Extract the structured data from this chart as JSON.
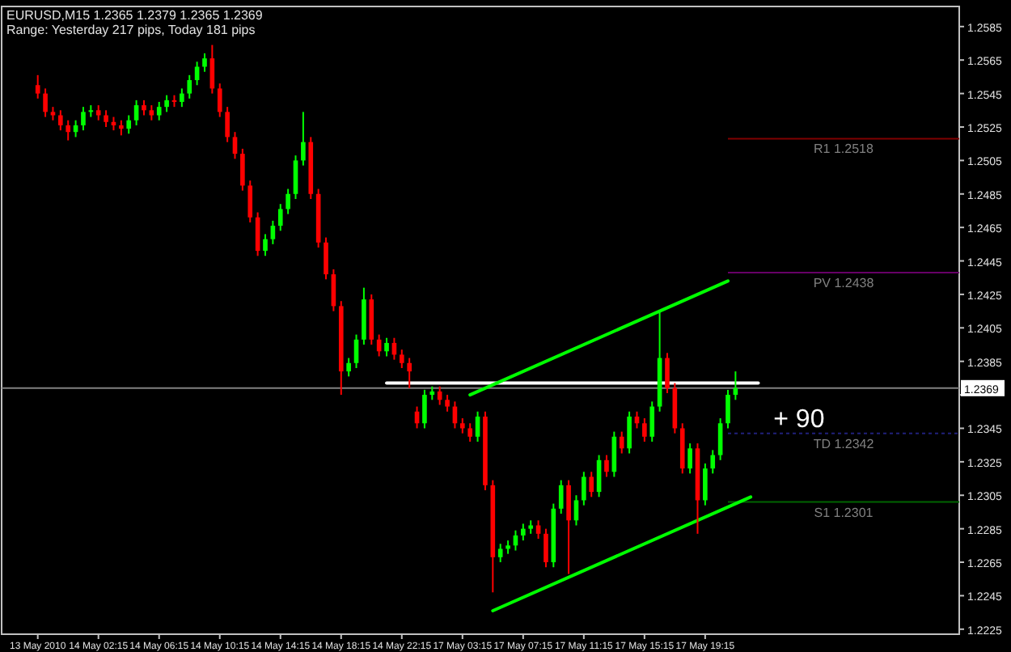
{
  "chart_data": {
    "type": "candlestick",
    "title": "EURUSD,M15  1.2365 1.2379 1.2365 1.2369",
    "subtitle": "Range: Yesterday 217 pips, Today 181 pips",
    "categories": [
      "13 May 2010",
      null,
      null,
      null,
      null,
      null,
      null,
      null,
      "14 May 02:15",
      null,
      null,
      null,
      null,
      null,
      null,
      null,
      "14 May 06:15",
      null,
      null,
      null,
      null,
      null,
      null,
      null,
      "14 May 10:15",
      null,
      null,
      null,
      null,
      null,
      null,
      null,
      "14 May 14:15",
      null,
      null,
      null,
      null,
      null,
      null,
      null,
      "14 May 18:15",
      null,
      null,
      null,
      null,
      null,
      null,
      null,
      "14 May 22:15",
      null,
      null,
      null,
      null,
      null,
      null,
      null,
      "17 May 03:15",
      null,
      null,
      null,
      null,
      null,
      null,
      null,
      "17 May 07:15",
      null,
      null,
      null,
      null,
      null,
      null,
      null,
      "17 May 11:15",
      null,
      null,
      null,
      null,
      null,
      null,
      null,
      "17 May 15:15",
      null,
      null,
      null,
      null,
      null,
      null,
      null,
      "17 May 19:15",
      null,
      null,
      null,
      null,
      null,
      null,
      null,
      null,
      null,
      null,
      null,
      null,
      null,
      null,
      null,
      null,
      null,
      null,
      null,
      null,
      null,
      null,
      null,
      null,
      null,
      null,
      null,
      null,
      null,
      null,
      null,
      null,
      null
    ],
    "ylim": [
      1.2222,
      1.2597
    ],
    "yticks": [
      1.2225,
      1.2245,
      1.2265,
      1.2285,
      1.2305,
      1.2325,
      1.2345,
      {
        "value": 1.2365,
        "label": null
      },
      1.2385,
      1.2405,
      1.2425,
      1.2445,
      1.2465,
      1.2485,
      1.2505,
      1.2525,
      1.2545,
      1.2565,
      1.2585
    ],
    "ohlc": [
      [
        1.255,
        1.2556,
        1.2542,
        1.2545
      ],
      [
        1.2545,
        1.2548,
        1.2531,
        1.2534
      ],
      [
        1.2534,
        1.2537,
        1.2529,
        1.2532
      ],
      [
        1.2532,
        1.2535,
        1.2523,
        1.2526
      ],
      [
        1.2526,
        1.2529,
        1.2517,
        1.2522
      ],
      [
        1.2522,
        1.2529,
        1.2519,
        1.2526
      ],
      [
        1.2526,
        1.2537,
        1.2523,
        1.2534
      ],
      [
        1.2534,
        1.2538,
        1.2531,
        1.2535
      ],
      [
        1.2535,
        1.2538,
        1.2529,
        1.2532
      ],
      [
        1.2532,
        1.2535,
        1.2525,
        1.2528
      ],
      [
        1.2528,
        1.2531,
        1.2523,
        1.2526
      ],
      [
        1.2526,
        1.2529,
        1.252,
        1.2524
      ],
      [
        1.2524,
        1.2532,
        1.2521,
        1.2529
      ],
      [
        1.2529,
        1.2541,
        1.2526,
        1.2538
      ],
      [
        1.2538,
        1.2541,
        1.2532,
        1.2535
      ],
      [
        1.2535,
        1.2538,
        1.2529,
        1.2532
      ],
      [
        1.2532,
        1.254,
        1.2529,
        1.2537
      ],
      [
        1.2537,
        1.2544,
        1.2534,
        1.2541
      ],
      [
        1.2541,
        1.2544,
        1.2537,
        1.254
      ],
      [
        1.254,
        1.2548,
        1.2537,
        1.2545
      ],
      [
        1.2545,
        1.2556,
        1.2542,
        1.2553
      ],
      [
        1.2553,
        1.2564,
        1.255,
        1.2561
      ],
      [
        1.2561,
        1.2569,
        1.2558,
        1.2566
      ],
      [
        1.2566,
        1.2574,
        1.2545,
        1.2548
      ],
      [
        1.2548,
        1.2551,
        1.2531,
        1.2534
      ],
      [
        1.2534,
        1.2537,
        1.2516,
        1.2519
      ],
      [
        1.2519,
        1.2522,
        1.2506,
        1.2509
      ],
      [
        1.2509,
        1.2512,
        1.2487,
        1.249
      ],
      [
        1.249,
        1.2493,
        1.2468,
        1.2471
      ],
      [
        1.2471,
        1.2474,
        1.2448,
        1.2451
      ],
      [
        1.2451,
        1.2461,
        1.2448,
        1.2458
      ],
      [
        1.2458,
        1.2469,
        1.2455,
        1.2466
      ],
      [
        1.2466,
        1.2479,
        1.2463,
        1.2476
      ],
      [
        1.2476,
        1.2488,
        1.2473,
        1.2485
      ],
      [
        1.2485,
        1.2508,
        1.2482,
        1.2505
      ],
      [
        1.2505,
        1.2534,
        1.2502,
        1.2516
      ],
      [
        1.2516,
        1.2519,
        1.2482,
        1.2485
      ],
      [
        1.2485,
        1.2488,
        1.2453,
        1.2456
      ],
      [
        1.2456,
        1.2459,
        1.2434,
        1.2437
      ],
      [
        1.2437,
        1.244,
        1.2415,
        1.2418
      ],
      [
        1.2418,
        1.2421,
        1.2365,
        1.2379
      ],
      [
        1.2379,
        1.2387,
        1.2376,
        1.2384
      ],
      [
        1.2384,
        1.2401,
        1.2381,
        1.2398
      ],
      [
        1.2398,
        1.2429,
        1.2395,
        1.2422
      ],
      [
        1.2422,
        1.2425,
        1.2395,
        1.2398
      ],
      [
        1.2398,
        1.2401,
        1.2388,
        1.2391
      ],
      [
        1.2391,
        1.2399,
        1.2388,
        1.2396
      ],
      [
        1.2396,
        1.2399,
        1.2386,
        1.2389
      ],
      [
        1.2389,
        1.2392,
        1.2381,
        1.2384
      ],
      [
        1.2384,
        1.2387,
        1.2369,
        1.2379
      ],
      [
        1.2355,
        1.2358,
        1.2345,
        1.2348
      ],
      [
        1.2348,
        1.2368,
        1.2345,
        1.2365
      ],
      [
        1.2365,
        1.237,
        1.2362,
        1.2367
      ],
      [
        1.2367,
        1.237,
        1.2359,
        1.2362
      ],
      [
        1.2362,
        1.2365,
        1.2355,
        1.2358
      ],
      [
        1.2358,
        1.2361,
        1.2345,
        1.2348
      ],
      [
        1.2348,
        1.2351,
        1.2342,
        1.2345
      ],
      [
        1.2345,
        1.2348,
        1.2337,
        1.234
      ],
      [
        1.234,
        1.2355,
        1.2337,
        1.2352
      ],
      [
        1.2352,
        1.2355,
        1.2308,
        1.2311
      ],
      [
        1.2311,
        1.2314,
        1.2247,
        1.2268
      ],
      [
        1.2268,
        1.2276,
        1.2265,
        1.2273
      ],
      [
        1.2273,
        1.2278,
        1.227,
        1.2275
      ],
      [
        1.2275,
        1.2284,
        1.2272,
        1.2281
      ],
      [
        1.2281,
        1.2288,
        1.2278,
        1.2285
      ],
      [
        1.2285,
        1.229,
        1.2282,
        1.2287
      ],
      [
        1.2287,
        1.229,
        1.2279,
        1.2282
      ],
      [
        1.2282,
        1.2285,
        1.2262,
        1.2265
      ],
      [
        1.2265,
        1.23,
        1.2262,
        1.2297
      ],
      [
        1.2297,
        1.2314,
        1.2294,
        1.2311
      ],
      [
        1.2311,
        1.2314,
        1.2258,
        1.229
      ],
      [
        1.229,
        1.2305,
        1.2287,
        1.2302
      ],
      [
        1.2302,
        1.2319,
        1.2299,
        1.2316
      ],
      [
        1.2316,
        1.2319,
        1.2304,
        1.2307
      ],
      [
        1.2307,
        1.2329,
        1.2304,
        1.2326
      ],
      [
        1.2326,
        1.2329,
        1.2316,
        1.2319
      ],
      [
        1.2319,
        1.2343,
        1.2316,
        1.234
      ],
      [
        1.234,
        1.2343,
        1.233,
        1.2333
      ],
      [
        1.2333,
        1.2355,
        1.233,
        1.2352
      ],
      [
        1.2352,
        1.2355,
        1.2345,
        1.2348
      ],
      [
        1.2348,
        1.2351,
        1.2337,
        1.234
      ],
      [
        1.234,
        1.2361,
        1.2337,
        1.2358
      ],
      [
        1.2358,
        1.2415,
        1.2355,
        1.2387
      ],
      [
        1.2387,
        1.239,
        1.2366,
        1.2369
      ],
      [
        1.2369,
        1.2372,
        1.2342,
        1.2345
      ],
      [
        1.2345,
        1.2348,
        1.2318,
        1.2321
      ],
      [
        1.2321,
        1.2336,
        1.2318,
        1.2333
      ],
      [
        1.2333,
        1.2336,
        1.2282,
        1.2302
      ],
      [
        1.2302,
        1.2324,
        1.2299,
        1.2321
      ],
      [
        1.2321,
        1.2332,
        1.2318,
        1.2329
      ],
      [
        1.2329,
        1.2351,
        1.2326,
        1.2348
      ],
      [
        1.2348,
        1.2368,
        1.2345,
        1.2365
      ],
      [
        1.2365,
        1.2379,
        1.2362,
        1.2369
      ],
      null,
      null,
      null,
      null,
      null,
      null,
      null,
      null,
      null,
      null,
      null,
      null,
      null,
      null,
      null,
      null,
      null,
      null,
      null,
      null,
      null,
      null,
      null,
      null,
      null,
      null,
      null,
      null,
      null
    ],
    "series": [
      {
        "type": "line",
        "color": "#ffffff",
        "values": [
          null,
          null,
          null,
          null,
          null,
          null,
          null,
          null,
          null,
          null,
          null,
          null,
          null,
          null,
          null,
          null,
          null,
          null,
          null,
          null,
          null,
          null,
          null,
          null,
          null,
          null,
          null,
          null,
          null,
          null,
          null,
          null,
          null,
          null,
          null,
          null,
          null,
          null,
          null,
          null,
          null,
          null,
          null,
          null,
          null,
          null,
          1.2372,
          null,
          null,
          null,
          null,
          null,
          null,
          null,
          null,
          null,
          null,
          null,
          null,
          null,
          null,
          null,
          null,
          null,
          null,
          null,
          null,
          null,
          null,
          null,
          null,
          null,
          null,
          null,
          null,
          null,
          null,
          null,
          null,
          null,
          null,
          null,
          null,
          null,
          null,
          null,
          null,
          null,
          null,
          null,
          null,
          null,
          null,
          null,
          null,
          1.2372,
          null,
          null,
          null,
          null,
          null,
          null,
          null,
          null,
          null,
          null,
          null,
          null,
          null,
          null,
          null,
          null,
          null,
          null,
          null,
          null,
          null,
          null,
          null,
          null,
          null,
          null
        ]
      },
      {
        "type": "line",
        "color": "#00ff00",
        "values": [
          null,
          null,
          null,
          null,
          null,
          null,
          null,
          null,
          null,
          null,
          null,
          null,
          null,
          null,
          null,
          null,
          null,
          null,
          null,
          null,
          null,
          null,
          null,
          null,
          null,
          null,
          null,
          null,
          null,
          null,
          null,
          null,
          null,
          null,
          null,
          null,
          null,
          null,
          null,
          null,
          null,
          null,
          null,
          null,
          null,
          null,
          null,
          null,
          null,
          null,
          null,
          null,
          null,
          null,
          null,
          null,
          null,
          1.2365,
          null,
          null,
          null,
          null,
          null,
          null,
          null,
          null,
          null,
          null,
          null,
          null,
          null,
          null,
          null,
          null,
          null,
          null,
          null,
          null,
          null,
          null,
          null,
          null,
          null,
          null,
          null,
          null,
          null,
          null,
          null,
          null,
          null,
          1.2433,
          null,
          null,
          null,
          null,
          null,
          null,
          null,
          null,
          null,
          null,
          null,
          null,
          null,
          null,
          null,
          null,
          null,
          null,
          null,
          null,
          null,
          null,
          null,
          null,
          null,
          null,
          null,
          null,
          null,
          null
        ]
      },
      {
        "type": "line",
        "color": "#00ff00",
        "values": [
          null,
          null,
          null,
          null,
          null,
          null,
          null,
          null,
          null,
          null,
          null,
          null,
          null,
          null,
          null,
          null,
          null,
          null,
          null,
          null,
          null,
          null,
          null,
          null,
          null,
          null,
          null,
          null,
          null,
          null,
          null,
          null,
          null,
          null,
          null,
          null,
          null,
          null,
          null,
          null,
          null,
          null,
          null,
          null,
          null,
          null,
          null,
          null,
          null,
          null,
          null,
          null,
          null,
          null,
          null,
          null,
          null,
          null,
          null,
          null,
          1.2236,
          null,
          null,
          null,
          null,
          null,
          null,
          null,
          null,
          null,
          null,
          null,
          null,
          null,
          null,
          null,
          null,
          null,
          null,
          null,
          null,
          null,
          null,
          null,
          null,
          null,
          null,
          null,
          null,
          null,
          null,
          null,
          null,
          null,
          1.2304,
          null,
          null,
          null,
          null,
          null,
          null,
          null,
          null,
          null,
          null,
          null,
          null,
          null,
          null,
          null,
          null,
          null,
          null,
          null,
          null,
          null,
          null,
          null,
          null,
          null,
          null,
          null
        ]
      }
    ],
    "ref_lines": [
      {
        "axis": "y",
        "value": 1.2518,
        "label": "R1 1.2518",
        "color": "#800000"
      },
      {
        "axis": "y",
        "value": 1.2438,
        "label": "PV 1.2438",
        "color": "#660066"
      },
      {
        "axis": "y",
        "value": 1.2342,
        "label": "TD 1.2342",
        "color": "#20207a",
        "line_style": "dotted"
      },
      {
        "axis": "y",
        "value": 1.2301,
        "label": "S1 1.2301",
        "color": "#006400"
      },
      {
        "axis": "y",
        "value": 1.2369,
        "label": "1.2369",
        "color": "#808080"
      }
    ],
    "annotations": [
      "+ 90"
    ]
  }
}
